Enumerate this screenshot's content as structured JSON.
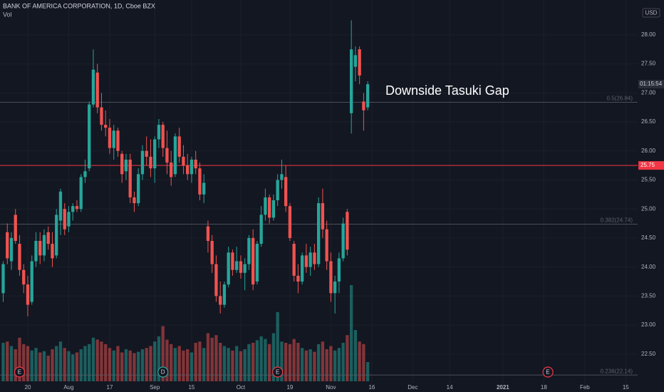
{
  "chart_data": {
    "type": "candlestick",
    "title": "BANK OF AMERICA CORPORATION, 1D, Cboe BZX",
    "volume_label": "Vol",
    "currency": "USD",
    "up_color": "#26a69a",
    "down_color": "#ef5350",
    "grid": true,
    "open": [
      23.55,
      24.6,
      24.1,
      24.9,
      24.4,
      23.95,
      23.7,
      23.4,
      24.1,
      24.45,
      24.2,
      24.6,
      24.4,
      24.2,
      24.8,
      25.0,
      24.7,
      24.95,
      25.05,
      25.0,
      25.55,
      25.7,
      26.8,
      27.35,
      26.75,
      26.45,
      26.4,
      26.05,
      26.35,
      25.95,
      25.65,
      25.85,
      25.2,
      25.1,
      25.6,
      26.0,
      25.9,
      25.7,
      26.2,
      26.45,
      26.05,
      25.8,
      25.6,
      26.25,
      25.9,
      25.75,
      25.6,
      25.85,
      25.7,
      25.25,
      24.7,
      24.45,
      24.05,
      23.5,
      23.35,
      23.7,
      24.25,
      23.95,
      24.1,
      23.9,
      24.05,
      24.5,
      23.75,
      24.4,
      24.9,
      25.2,
      24.85,
      25.15,
      25.5,
      25.55,
      25.05,
      24.4,
      23.85,
      23.75,
      24.2,
      24.0,
      24.25,
      24.05,
      25.1,
      24.65,
      24.1,
      23.55,
      23.75,
      24.15,
      24.95,
      26.65,
      27.45,
      27.75,
      26.85,
      26.75
    ],
    "high": [
      24.1,
      24.75,
      24.6,
      25.0,
      24.55,
      24.05,
      23.85,
      24.2,
      24.6,
      24.6,
      24.65,
      24.7,
      24.6,
      25.0,
      25.35,
      25.1,
      25.05,
      25.1,
      25.15,
      25.6,
      25.85,
      26.85,
      27.75,
      27.5,
      27.0,
      26.7,
      26.55,
      26.45,
      26.4,
      26.0,
      25.95,
      25.95,
      25.3,
      25.7,
      26.1,
      26.25,
      26.2,
      26.25,
      26.55,
      26.5,
      26.35,
      26.0,
      26.3,
      26.4,
      26.1,
      25.95,
      25.9,
      26.0,
      25.8,
      25.6,
      24.8,
      24.55,
      24.2,
      23.75,
      23.75,
      24.35,
      24.3,
      24.35,
      24.2,
      24.15,
      24.55,
      24.65,
      24.45,
      25.05,
      25.35,
      25.25,
      25.25,
      25.6,
      25.85,
      25.75,
      25.1,
      24.45,
      24.05,
      24.25,
      24.4,
      24.35,
      24.4,
      25.2,
      25.35,
      24.8,
      24.25,
      23.85,
      24.25,
      24.85,
      25.0,
      28.25,
      27.8,
      27.8,
      27.0,
      27.2
    ],
    "low": [
      23.4,
      24.05,
      23.95,
      24.4,
      23.85,
      23.55,
      23.15,
      23.35,
      24.0,
      24.05,
      24.1,
      24.3,
      24.0,
      24.15,
      24.55,
      24.55,
      24.6,
      24.8,
      24.95,
      24.95,
      25.45,
      25.65,
      26.75,
      26.65,
      26.35,
      26.25,
      25.95,
      25.85,
      25.9,
      25.45,
      25.5,
      25.1,
      24.95,
      25.05,
      25.5,
      25.75,
      25.55,
      25.45,
      26.05,
      25.9,
      25.6,
      25.4,
      25.55,
      25.8,
      25.6,
      25.5,
      25.45,
      25.6,
      25.15,
      25.1,
      24.25,
      23.9,
      23.4,
      23.2,
      23.3,
      23.65,
      23.85,
      23.9,
      23.8,
      23.6,
      23.95,
      23.6,
      23.7,
      24.35,
      24.8,
      24.75,
      24.8,
      25.05,
      25.35,
      24.95,
      24.45,
      23.75,
      23.55,
      23.7,
      23.9,
      23.85,
      23.95,
      24.0,
      24.5,
      23.95,
      23.4,
      23.2,
      23.55,
      24.1,
      24.2,
      26.3,
      27.2,
      27.15,
      26.35,
      26.7
    ],
    "close": [
      24.05,
      24.15,
      24.5,
      24.45,
      23.95,
      23.7,
      23.35,
      24.1,
      24.45,
      24.2,
      24.55,
      24.4,
      24.15,
      24.9,
      25.3,
      24.65,
      24.95,
      25.05,
      25.0,
      25.55,
      25.65,
      26.8,
      27.4,
      26.75,
      26.45,
      26.4,
      26.05,
      26.35,
      26.0,
      25.6,
      25.85,
      25.2,
      25.1,
      25.6,
      26.0,
      25.9,
      25.7,
      26.2,
      26.45,
      26.05,
      25.8,
      25.55,
      26.25,
      25.9,
      25.75,
      25.6,
      25.85,
      25.7,
      25.25,
      25.45,
      24.45,
      24.05,
      23.5,
      23.35,
      23.7,
      24.25,
      23.95,
      24.1,
      23.9,
      24.05,
      24.5,
      23.7,
      24.4,
      24.9,
      25.2,
      24.85,
      25.15,
      25.5,
      25.6,
      25.05,
      24.5,
      23.85,
      23.75,
      24.2,
      24.0,
      24.25,
      24.05,
      25.1,
      24.65,
      24.1,
      23.55,
      23.75,
      24.15,
      24.75,
      24.3,
      27.75,
      27.65,
      27.3,
      26.7,
      27.15
    ],
    "volume": [
      60,
      62,
      55,
      50,
      68,
      58,
      55,
      48,
      52,
      45,
      47,
      40,
      50,
      55,
      62,
      52,
      47,
      42,
      45,
      50,
      55,
      58,
      68,
      65,
      62,
      58,
      52,
      48,
      55,
      45,
      50,
      48,
      44,
      46,
      50,
      52,
      55,
      62,
      70,
      86,
      65,
      58,
      52,
      55,
      48,
      50,
      45,
      60,
      62,
      52,
      75,
      68,
      72,
      60,
      55,
      52,
      48,
      55,
      47,
      50,
      58,
      60,
      64,
      70,
      66,
      58,
      75,
      108,
      62,
      60,
      58,
      66,
      60,
      52,
      48,
      50,
      46,
      58,
      62,
      50,
      55,
      48,
      52,
      60,
      72,
      150,
      80,
      62,
      58,
      30
    ],
    "volume_ylim": [
      0,
      150
    ],
    "ylim": [
      21.97,
      28.6
    ],
    "yticks": [
      {
        "value": 22.5,
        "label": "22.50"
      },
      {
        "value": 23,
        "label": "23.00"
      },
      {
        "value": 23.5,
        "label": "23.50"
      },
      {
        "value": 24,
        "label": "24.00"
      },
      {
        "value": 24.5,
        "label": "24.50"
      },
      {
        "value": 25,
        "label": "25.00"
      },
      {
        "value": 25.5,
        "label": "25.50"
      },
      {
        "value": 26,
        "label": "26.00"
      },
      {
        "value": 26.5,
        "label": "26.50"
      },
      {
        "value": 27,
        "label": "27.00"
      },
      {
        "value": 27.5,
        "label": "27.50"
      },
      {
        "value": 28,
        "label": "28.00"
      }
    ],
    "xlim": [
      -0.78,
      154.9
    ],
    "xticks": [
      {
        "value": 6,
        "label": "20"
      },
      {
        "value": 16,
        "label": "Aug"
      },
      {
        "value": 26,
        "label": "17"
      },
      {
        "value": 37,
        "label": "Sep"
      },
      {
        "value": 46,
        "label": "15"
      },
      {
        "value": 58,
        "label": "Oct"
      },
      {
        "value": 70,
        "label": "19"
      },
      {
        "value": 80,
        "label": "Nov"
      },
      {
        "value": 90,
        "label": "16"
      },
      {
        "value": 100,
        "label": "Dec"
      },
      {
        "value": 109,
        "label": "14"
      },
      {
        "value": 122,
        "label": "2021"
      },
      {
        "value": 132,
        "label": "18"
      },
      {
        "value": 142,
        "label": "Feb"
      },
      {
        "value": 152,
        "label": "15"
      }
    ],
    "horizontal_line": {
      "value": 25.75,
      "label": "25.75",
      "color": "#f23645"
    },
    "fib_levels": [
      {
        "label": "0.5(26.84)",
        "value": 26.84
      },
      {
        "label": "0.382(24.74)",
        "value": 24.74
      },
      {
        "label": "0.236(22.14)",
        "value": 22.14
      }
    ],
    "annotation": "Downside Tasuki Gap",
    "countdown": "01:15:54",
    "events": [
      {
        "label": "E",
        "x": 4,
        "color": "#f23645"
      },
      {
        "label": "D",
        "x": 39,
        "color": "#26a69a"
      },
      {
        "label": "E",
        "x": 67,
        "color": "#f23645"
      },
      {
        "label": "E",
        "x": 133,
        "color": "#f23645"
      }
    ]
  }
}
